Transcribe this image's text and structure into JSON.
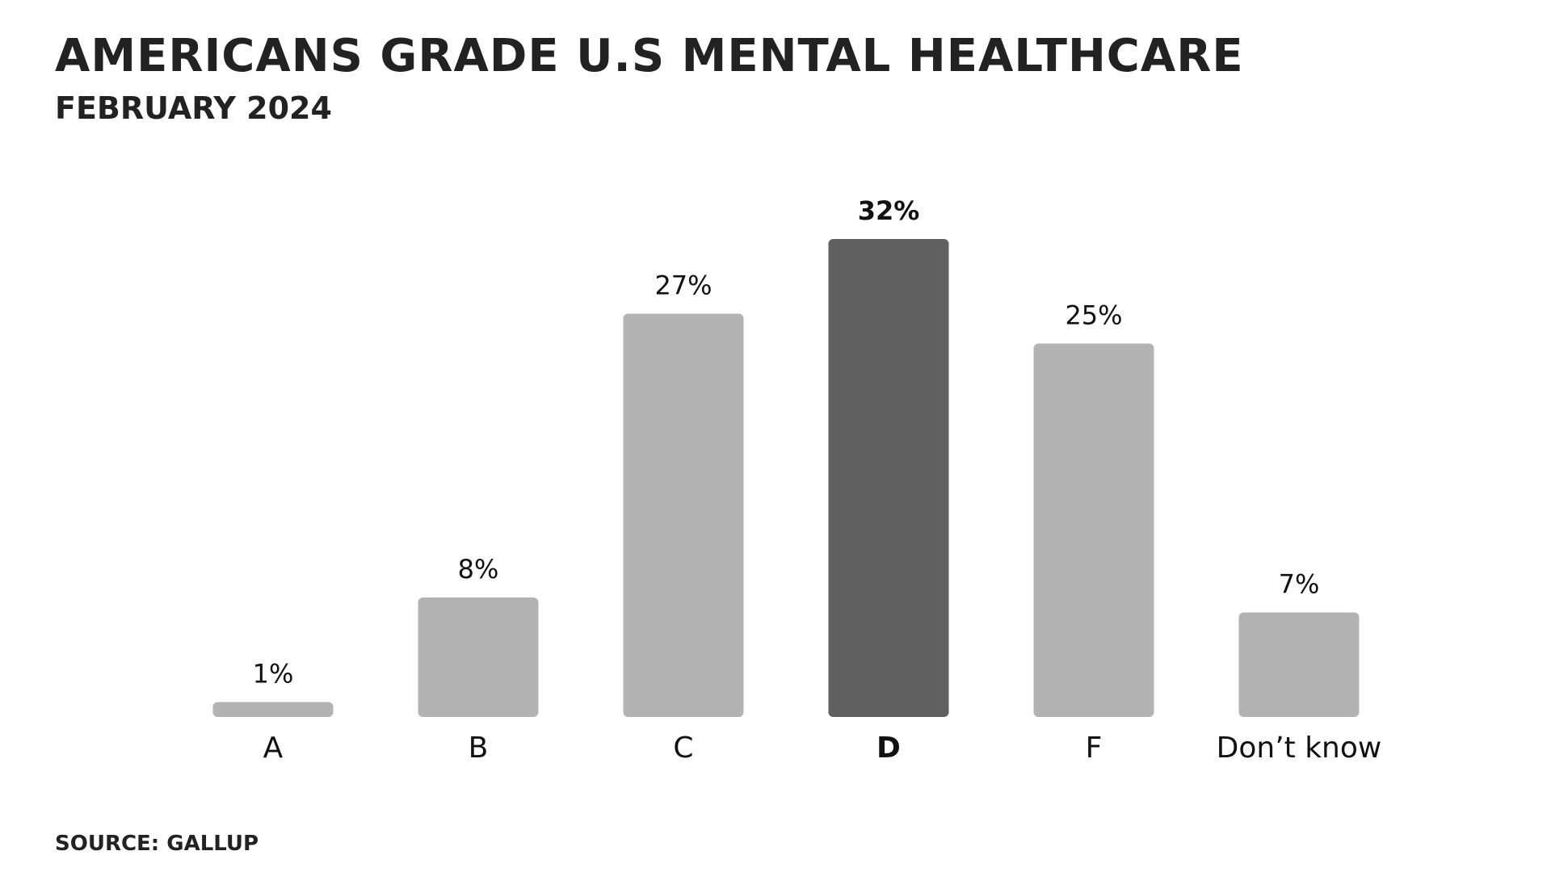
{
  "chart_data": {
    "type": "bar",
    "title": "AMERICANS GRADE U.S MENTAL HEALTHCARE",
    "subtitle": "FEBRUARY 2024",
    "source": "SOURCE: GALLUP",
    "categories": [
      "A",
      "B",
      "C",
      "D",
      "F",
      "Don’t know"
    ],
    "values": [
      1,
      8,
      27,
      32,
      25,
      7
    ],
    "value_labels": [
      "1%",
      "8%",
      "27%",
      "32%",
      "25%",
      "7%"
    ],
    "colors": [
      "#b4b3b4",
      "#b4b3b4",
      "#b4b3b4",
      "#606060",
      "#b4b3b4",
      "#b4b3b4"
    ]
  }
}
